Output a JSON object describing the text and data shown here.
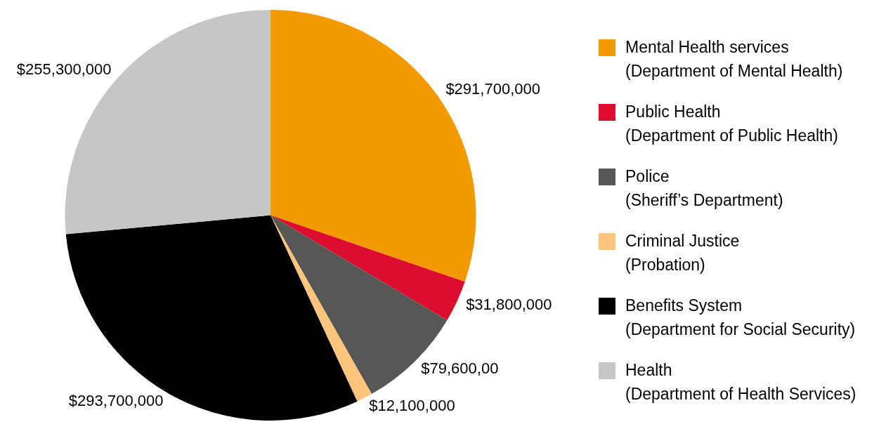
{
  "chart_data": {
    "type": "pie",
    "categories": [
      "Mental Health services\n(Department of Mental Health)",
      "Public Health\n(Department of Public Health)",
      "Police\n(Sheriff’s Department)",
      "Criminal Justice\n(Probation)",
      "Benefits System\n(Department for Social Security)",
      "Health\n(Department of Health Services)"
    ],
    "values": [
      291700000,
      31800000,
      79600000,
      12100000,
      293700000,
      255300000
    ],
    "value_labels": [
      "$291,700,000",
      "$31,800,000",
      "$79,600,00",
      "$12,100,000",
      "$293,700,000",
      "$255,300,000"
    ],
    "colors": [
      "#f39a00",
      "#dc0d2f",
      "#575756",
      "#fdc57b",
      "#000000",
      "#c6c6c6"
    ],
    "legend": "right"
  }
}
